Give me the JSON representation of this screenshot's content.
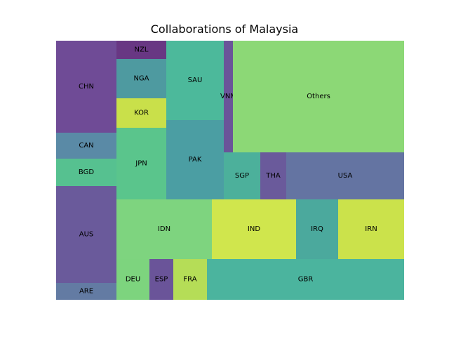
{
  "chart_data": {
    "type": "treemap",
    "title": "Collaborations of Malaysia",
    "items": [
      {
        "label": "CHN",
        "value": 5.6,
        "color": "#6f4b96"
      },
      {
        "label": "CAN",
        "value": 1.6,
        "color": "#5a8aa6"
      },
      {
        "label": "BGD",
        "value": 1.7,
        "color": "#56c190"
      },
      {
        "label": "AUS",
        "value": 5.9,
        "color": "#6a5a9b"
      },
      {
        "label": "ARE",
        "value": 1.0,
        "color": "#637ba3"
      },
      {
        "label": "NZL",
        "value": 0.9,
        "color": "#683783"
      },
      {
        "label": "NGA",
        "value": 1.9,
        "color": "#4e9aa0"
      },
      {
        "label": "KOR",
        "value": 1.5,
        "color": "#c9e04a"
      },
      {
        "label": "JPN",
        "value": 3.7,
        "color": "#5ac58c"
      },
      {
        "label": "SAU",
        "value": 4.8,
        "color": "#4cb99b"
      },
      {
        "label": "PAK",
        "value": 4.8,
        "color": "#4b9ea3"
      },
      {
        "label": "VNM",
        "value": 0.7,
        "color": "#6a5499"
      },
      {
        "label": "Others",
        "value": 19.4,
        "color": "#8cd876"
      },
      {
        "label": "SGP",
        "value": 2.2,
        "color": "#4cb09b"
      },
      {
        "label": "THA",
        "value": 1.5,
        "color": "#6a5a9b"
      },
      {
        "label": "USA",
        "value": 5.6,
        "color": "#6474a2"
      },
      {
        "label": "IDN",
        "value": 7.2,
        "color": "#7ed47f"
      },
      {
        "label": "IND",
        "value": 6.4,
        "color": "#d0e64d"
      },
      {
        "label": "IRQ",
        "value": 3.2,
        "color": "#4ba99d"
      },
      {
        "label": "IRN",
        "value": 5.0,
        "color": "#cbe24b"
      },
      {
        "label": "DEU",
        "value": 1.6,
        "color": "#7dd47e"
      },
      {
        "label": "ESP",
        "value": 1.2,
        "color": "#6a5499"
      },
      {
        "label": "FRA",
        "value": 1.7,
        "color": "#b5dd57"
      },
      {
        "label": "GBR",
        "value": 9.5,
        "color": "#4bb49e"
      }
    ]
  }
}
